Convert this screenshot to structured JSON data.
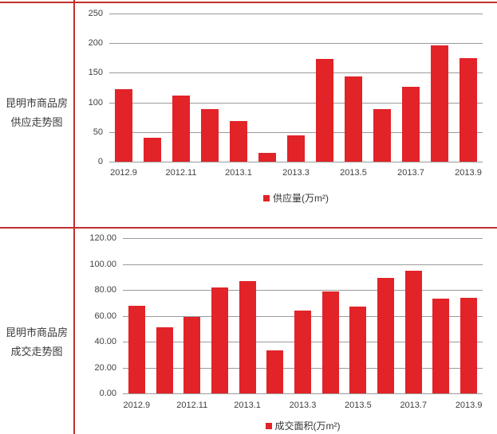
{
  "left_panel": {
    "supply_label": {
      "line1": "昆明市商品房",
      "line2": "供应走势图"
    },
    "deal_label": {
      "line1": "昆明市商品房",
      "line2": "成交走势图"
    }
  },
  "colors": {
    "bar_red": "#e22328",
    "border_red": "#c0302f",
    "gridline_gray": "#9a9a9a"
  },
  "chart_data": [
    {
      "type": "bar",
      "title": "昆明市商品房供应走势图",
      "legend": "供应量(万m²)",
      "ylabel": "",
      "xlabel": "",
      "ylim": [
        0,
        250
      ],
      "grid": true,
      "legend_position": "bottom",
      "ytick_labels": [
        "0",
        "50",
        "100",
        "150",
        "200",
        "250"
      ],
      "x_labels": [
        "2012.9",
        "",
        "2012.11",
        "",
        "2013.1",
        "",
        "2013.3",
        "",
        "2013.5",
        "",
        "2013.7",
        "",
        "2013.9"
      ],
      "values": [
        122,
        40,
        111,
        89,
        69,
        15,
        44,
        173,
        144,
        89,
        126,
        196,
        175
      ]
    },
    {
      "type": "bar",
      "title": "昆明市商品房成交走势图",
      "legend": "成交面积(万m²)",
      "ylabel": "",
      "xlabel": "",
      "ylim": [
        0,
        120
      ],
      "grid": true,
      "legend_position": "bottom",
      "ytick_labels": [
        "0.00",
        "20.00",
        "40.00",
        "60.00",
        "80.00",
        "100.00",
        "120.00"
      ],
      "x_labels": [
        "2012.9",
        "",
        "2012.11",
        "",
        "2013.1",
        "",
        "2013.3",
        "",
        "2013.5",
        "",
        "2013.7",
        "",
        "2013.9"
      ],
      "values": [
        68,
        51,
        59,
        82,
        87,
        33,
        64,
        79,
        67,
        89,
        95,
        73,
        74
      ]
    }
  ]
}
